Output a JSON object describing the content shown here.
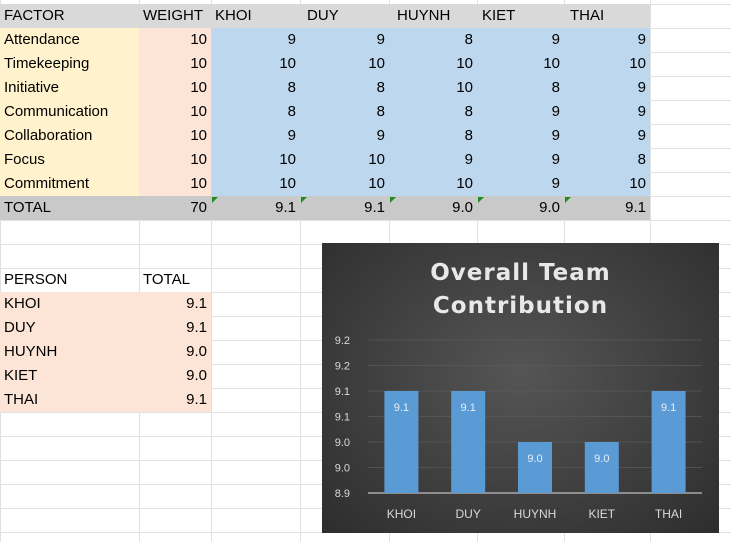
{
  "sheet": {
    "headers": [
      "FACTOR",
      "WEIGHT",
      "KHOI",
      "DUY",
      "HUYNH",
      "KIET",
      "THAI"
    ],
    "rows": [
      {
        "factor": "Attendance",
        "weight": "10",
        "scores": [
          "9",
          "9",
          "8",
          "9",
          "9"
        ]
      },
      {
        "factor": "Timekeeping",
        "weight": "10",
        "scores": [
          "10",
          "10",
          "10",
          "10",
          "10"
        ]
      },
      {
        "factor": "Initiative",
        "weight": "10",
        "scores": [
          "8",
          "8",
          "10",
          "8",
          "9"
        ]
      },
      {
        "factor": "Communication",
        "weight": "10",
        "scores": [
          "8",
          "8",
          "8",
          "9",
          "9"
        ]
      },
      {
        "factor": "Collaboration",
        "weight": "10",
        "scores": [
          "9",
          "9",
          "8",
          "9",
          "9"
        ]
      },
      {
        "factor": "Focus",
        "weight": "10",
        "scores": [
          "10",
          "10",
          "9",
          "9",
          "8"
        ]
      },
      {
        "factor": "Commitment",
        "weight": "10",
        "scores": [
          "10",
          "10",
          "10",
          "9",
          "10"
        ]
      }
    ],
    "total_row": {
      "label": "TOTAL",
      "weight": "70",
      "scores": [
        "9.1",
        "9.1",
        "9.0",
        "9.0",
        "9.1"
      ]
    }
  },
  "summary": {
    "headers": [
      "PERSON",
      "TOTAL"
    ],
    "rows": [
      {
        "person": "KHOI",
        "total": "9.1"
      },
      {
        "person": "DUY",
        "total": "9.1"
      },
      {
        "person": "HUYNH",
        "total": "9.0"
      },
      {
        "person": "KIET",
        "total": "9.0"
      },
      {
        "person": "THAI",
        "total": "9.1"
      }
    ]
  },
  "colors": {
    "bar": "#5b9bd5",
    "chart_bg": "#404040",
    "indicator": "#1e8c1e"
  },
  "chart_data": {
    "type": "bar",
    "title_lines": [
      "Overall Team",
      "Contribution"
    ],
    "categories": [
      "KHOI",
      "DUY",
      "HUYNH",
      "KIET",
      "THAI"
    ],
    "values": [
      9.1,
      9.1,
      9.0,
      9.0,
      9.1
    ],
    "data_labels": [
      "9.1",
      "9.1",
      "9.0",
      "9.0",
      "9.1"
    ],
    "ylim": [
      8.9,
      9.2
    ],
    "yticks": [
      8.9,
      8.95,
      9.0,
      9.05,
      9.1,
      9.15,
      9.2
    ],
    "ytick_labels": [
      "8.9",
      "9.0",
      "9.0",
      "9.1",
      "9.1",
      "9.2",
      "9.2"
    ],
    "grid": true,
    "legend": "none",
    "bar_color": "#5b9bd5"
  }
}
